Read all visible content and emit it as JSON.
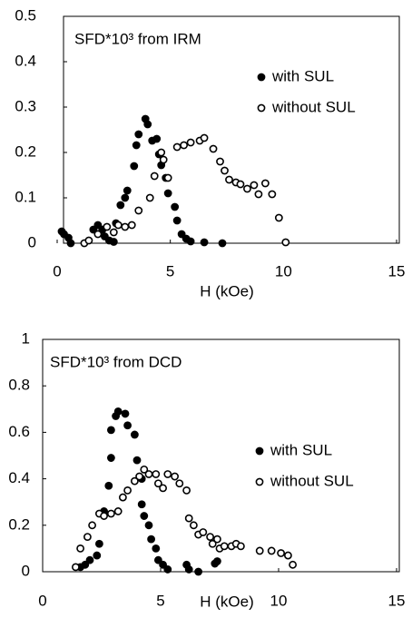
{
  "chart_data": [
    {
      "type": "scatter",
      "title": "SFD*10³ from IRM",
      "xlabel": "H (kOe)",
      "xlim": [
        0,
        15
      ],
      "ylim": [
        0,
        0.5
      ],
      "xticks": [
        0,
        5,
        10,
        15
      ],
      "yticks": [
        0,
        0.1,
        0.2,
        0.3,
        0.4,
        0.5
      ],
      "legend": "upper right",
      "series": [
        {
          "name": "with SUL",
          "color": "#000000",
          "marker": "filled",
          "x": [
            0.2,
            0.3,
            0.5,
            0.6,
            1.6,
            1.8,
            2.0,
            2.1,
            2.3,
            2.5,
            2.6,
            2.8,
            3.0,
            3.1,
            3.4,
            3.5,
            3.6,
            3.9,
            4.0,
            4.2,
            4.4,
            4.5,
            4.6,
            4.8,
            4.9,
            5.2,
            5.3,
            5.5,
            5.7,
            5.9,
            6.5,
            7.3
          ],
          "values": [
            0.026,
            0.02,
            0.012,
            0.0,
            0.03,
            0.04,
            0.03,
            0.015,
            0.006,
            0.003,
            0.044,
            0.084,
            0.1,
            0.116,
            0.17,
            0.216,
            0.24,
            0.274,
            0.262,
            0.226,
            0.23,
            0.196,
            0.172,
            0.144,
            0.11,
            0.08,
            0.05,
            0.02,
            0.01,
            0.004,
            0.002,
            0.0
          ]
        },
        {
          "name": "without SUL",
          "color": "#000000",
          "marker": "open",
          "x": [
            1.2,
            1.4,
            1.8,
            2.2,
            2.5,
            2.7,
            3.0,
            3.3,
            3.6,
            4.1,
            4.3,
            4.6,
            4.7,
            4.9,
            5.3,
            5.6,
            5.9,
            6.3,
            6.5,
            6.9,
            7.2,
            7.4,
            7.6,
            7.9,
            8.1,
            8.4,
            8.7,
            8.9,
            9.2,
            9.5,
            9.8,
            10.1
          ],
          "values": [
            0.0,
            0.006,
            0.02,
            0.036,
            0.024,
            0.04,
            0.036,
            0.04,
            0.072,
            0.1,
            0.148,
            0.2,
            0.184,
            0.144,
            0.212,
            0.216,
            0.222,
            0.226,
            0.232,
            0.208,
            0.18,
            0.16,
            0.14,
            0.134,
            0.13,
            0.12,
            0.128,
            0.108,
            0.132,
            0.108,
            0.056,
            0.002
          ]
        }
      ]
    },
    {
      "type": "scatter",
      "title": "SFD*10³ from DCD",
      "xlabel": "H (kOe)",
      "xlim": [
        0,
        15
      ],
      "ylim": [
        0,
        1
      ],
      "xticks": [
        0,
        5,
        10,
        15
      ],
      "yticks": [
        0,
        0.2,
        0.4,
        0.6,
        0.8,
        1
      ],
      "legend": "right",
      "series": [
        {
          "name": "with SUL",
          "color": "#000000",
          "marker": "filled",
          "x": [
            1.6,
            1.8,
            2.0,
            2.3,
            2.4,
            2.6,
            2.8,
            2.9,
            2.9,
            3.1,
            3.2,
            3.5,
            3.6,
            3.9,
            4.0,
            4.2,
            4.2,
            4.3,
            4.5,
            4.6,
            4.8,
            4.9,
            5.1,
            5.3,
            6.1,
            6.2,
            6.6,
            7.3,
            7.4
          ],
          "values": [
            0.02,
            0.03,
            0.05,
            0.07,
            0.12,
            0.26,
            0.37,
            0.49,
            0.61,
            0.67,
            0.69,
            0.68,
            0.63,
            0.59,
            0.48,
            0.4,
            0.29,
            0.24,
            0.2,
            0.14,
            0.1,
            0.05,
            0.03,
            0.01,
            0.03,
            0.01,
            0.0,
            0.035,
            0.045
          ]
        },
        {
          "name": "without SUL",
          "color": "#000000",
          "marker": "open",
          "x": [
            1.4,
            1.6,
            1.9,
            2.1,
            2.4,
            2.6,
            2.9,
            3.2,
            3.4,
            3.6,
            3.9,
            4.1,
            4.3,
            4.5,
            4.8,
            4.9,
            5.1,
            5.3,
            5.6,
            5.8,
            6.1,
            6.2,
            6.4,
            6.6,
            6.8,
            7.1,
            7.2,
            7.4,
            7.5,
            7.7,
            8.0,
            8.2,
            8.4,
            9.2,
            9.7,
            10.1,
            10.4,
            10.6
          ],
          "values": [
            0.02,
            0.1,
            0.15,
            0.2,
            0.25,
            0.24,
            0.25,
            0.26,
            0.32,
            0.35,
            0.39,
            0.41,
            0.44,
            0.42,
            0.42,
            0.38,
            0.36,
            0.42,
            0.41,
            0.38,
            0.35,
            0.23,
            0.2,
            0.16,
            0.17,
            0.15,
            0.12,
            0.14,
            0.1,
            0.11,
            0.11,
            0.12,
            0.11,
            0.09,
            0.09,
            0.08,
            0.07,
            0.03
          ]
        }
      ]
    }
  ]
}
